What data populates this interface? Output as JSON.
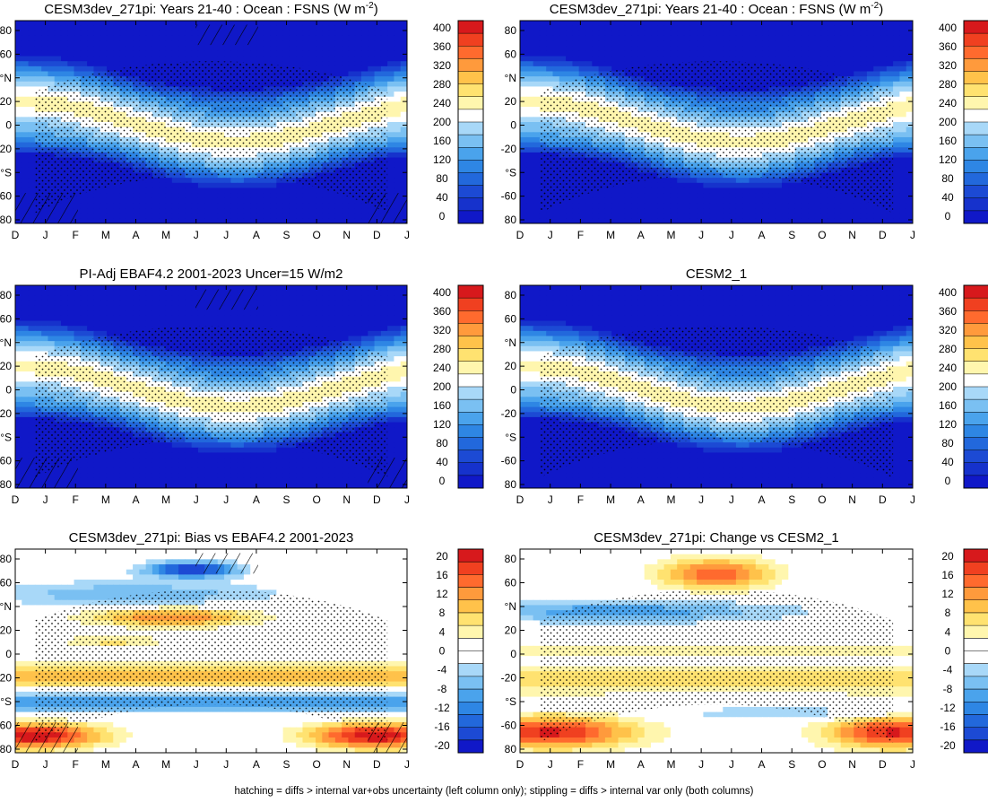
{
  "figure": {
    "footnote": "hatching = diffs > internal var+obs uncertainty (left column only); stippling = diffs > internal var only (both columns)"
  },
  "scales": {
    "absolute": {
      "levels": [
        "400",
        "360",
        "320",
        "280",
        "240",
        "200",
        "160",
        "120",
        "80",
        "40",
        "0"
      ],
      "colors": [
        "#d7191c",
        "#f04020",
        "#ff6a2e",
        "#ff9a3c",
        "#ffc24a",
        "#ffe270",
        "#fff6ae",
        "#ffffff",
        "#a8d8f8",
        "#7ac0f2",
        "#4aa3ec",
        "#2e86e4",
        "#2268dc",
        "#1c4ad4",
        "#1632cc",
        "#1018c8"
      ]
    },
    "difference": {
      "levels": [
        "20",
        "16",
        "12",
        "8",
        "4",
        "0",
        "-4",
        "-8",
        "-12",
        "-16",
        "-20"
      ],
      "colors": [
        "#d7191c",
        "#f04020",
        "#ff6a2e",
        "#ff9a3c",
        "#ffc24a",
        "#ffe270",
        "#fff6ae",
        "#ffffff",
        "#ffffff",
        "#a8d8f8",
        "#7ac0f2",
        "#4aa3ec",
        "#2e86e4",
        "#2268dc",
        "#1c4ad4",
        "#1018c8"
      ]
    }
  },
  "axes": {
    "x_ticks": [
      "D",
      "J",
      "F",
      "M",
      "A",
      "M",
      "J",
      "J",
      "A",
      "S",
      "O",
      "N",
      "D",
      "J"
    ],
    "y_ticks": [
      "80",
      "60",
      "°N",
      "20",
      "0",
      "-20",
      "°S",
      "-60",
      "80"
    ]
  },
  "chart_data": [
    {
      "type": "heatmap",
      "title": "CESM3dev_271pi: Years 21-40 : Ocean : FSNS (W m",
      "title_sup": "-2",
      "title_tail": ")",
      "scale": "absolute",
      "field": "fsns",
      "hatched": true,
      "stippled": true
    },
    {
      "type": "heatmap",
      "title": "CESM3dev_271pi: Years 21-40 : Ocean : FSNS (W m",
      "title_sup": "-2",
      "title_tail": ")",
      "scale": "absolute",
      "field": "fsns",
      "hatched": false,
      "stippled": true
    },
    {
      "type": "heatmap",
      "title": "PI-Adj EBAF4.2 2001-2023 Uncer=15 W/m2",
      "title_sup": "",
      "title_tail": "",
      "scale": "absolute",
      "field": "fsns",
      "hatched": true,
      "stippled": true
    },
    {
      "type": "heatmap",
      "title": "CESM2_1",
      "title_sup": "",
      "title_tail": "",
      "scale": "absolute",
      "field": "fsns",
      "hatched": false,
      "stippled": true
    },
    {
      "type": "heatmap",
      "title": "CESM3dev_271pi: Bias vs EBAF4.2 2001-2023",
      "title_sup": "",
      "title_tail": "",
      "scale": "difference",
      "field": "bias",
      "hatched": true,
      "stippled": true
    },
    {
      "type": "heatmap",
      "title": "CESM3dev_271pi: Change vs CESM2_1",
      "title_sup": "",
      "title_tail": "",
      "scale": "difference",
      "field": "change",
      "hatched": false,
      "stippled": true
    }
  ]
}
